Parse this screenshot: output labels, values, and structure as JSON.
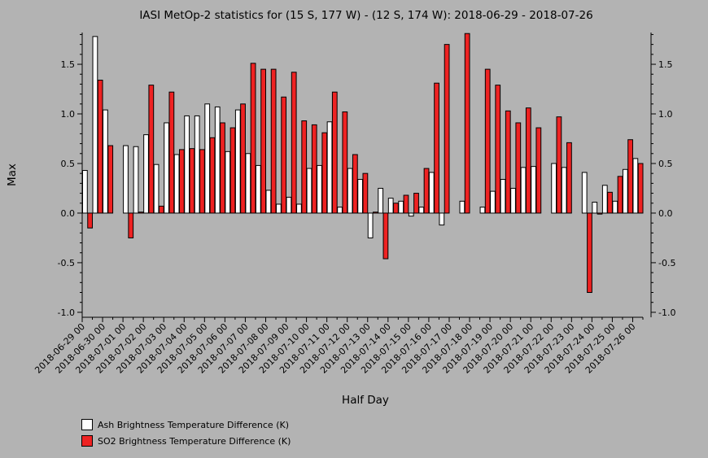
{
  "chart_data": {
    "type": "bar",
    "title": "IASI MetOp-2 statistics for (15 S, 177 W) - (12 S, 174 W): 2018-06-29 - 2018-07-26",
    "xlabel": "Half Day",
    "ylabel": "Max",
    "ylim": [
      -1.05,
      1.82
    ],
    "yticks": [
      -1.0,
      -0.5,
      0.0,
      0.5,
      1.0,
      1.5
    ],
    "ytick_labels": [
      "-1.0",
      "-0.5",
      "0.0",
      "0.5",
      "1.0",
      "1.5"
    ],
    "x_tick_labels": [
      "2018-06-29 00",
      "2018-06-30 00",
      "2018-07-01 00",
      "2018-07-02 00",
      "2018-07-03 00",
      "2018-07-04 00",
      "2018-07-05 00",
      "2018-07-06 00",
      "2018-07-07 00",
      "2018-07-08 00",
      "2018-07-09 00",
      "2018-07-10 00",
      "2018-07-11 00",
      "2018-07-12 00",
      "2018-07-13 00",
      "2018-07-14 00",
      "2018-07-15 00",
      "2018-07-16 00",
      "2018-07-17 00",
      "2018-07-18 00",
      "2018-07-19 00",
      "2018-07-20 00",
      "2018-07-21 00",
      "2018-07-22 00",
      "2018-07-23 00",
      "2018-07-24 00",
      "2018-07-25 00",
      "2018-07-26 00"
    ],
    "series": [
      {
        "name": "Ash Brightness Temperature Difference (K)",
        "color": "#ffffff",
        "values": [
          0.43,
          1.78,
          1.04,
          null,
          0.68,
          0.67,
          0.79,
          0.49,
          0.91,
          0.59,
          0.98,
          0.98,
          1.1,
          1.07,
          0.62,
          1.04,
          0.6,
          0.48,
          0.23,
          0.09,
          0.16,
          0.09,
          0.45,
          0.48,
          0.92,
          0.06,
          0.45,
          0.34,
          -0.25,
          0.25,
          0.15,
          0.12,
          -0.03,
          0.06,
          0.41,
          -0.12,
          null,
          0.12,
          null,
          0.06,
          0.22,
          0.34,
          0.25,
          0.46,
          0.47,
          null,
          0.5,
          0.46,
          null,
          0.41,
          0.11,
          0.28,
          0.12,
          0.44,
          0.55
        ]
      },
      {
        "name": "SO2 Brightness Temperature Difference (K)",
        "color": "#ee2222",
        "values": [
          -0.15,
          1.34,
          0.68,
          null,
          -0.25,
          0.01,
          1.29,
          0.07,
          1.22,
          0.64,
          0.65,
          0.64,
          0.76,
          0.91,
          0.86,
          1.1,
          1.51,
          1.45,
          1.45,
          1.17,
          1.42,
          0.93,
          0.89,
          0.81,
          1.22,
          1.02,
          0.59,
          0.4,
          0.01,
          -0.46,
          0.1,
          0.18,
          0.2,
          0.45,
          1.31,
          1.7,
          null,
          1.81,
          null,
          1.45,
          1.29,
          1.03,
          0.91,
          1.06,
          0.86,
          null,
          0.97,
          0.71,
          null,
          -0.8,
          -0.01,
          0.21,
          0.37,
          0.74,
          0.5
        ]
      }
    ],
    "legend_position": "bottom-left",
    "grid": false
  }
}
